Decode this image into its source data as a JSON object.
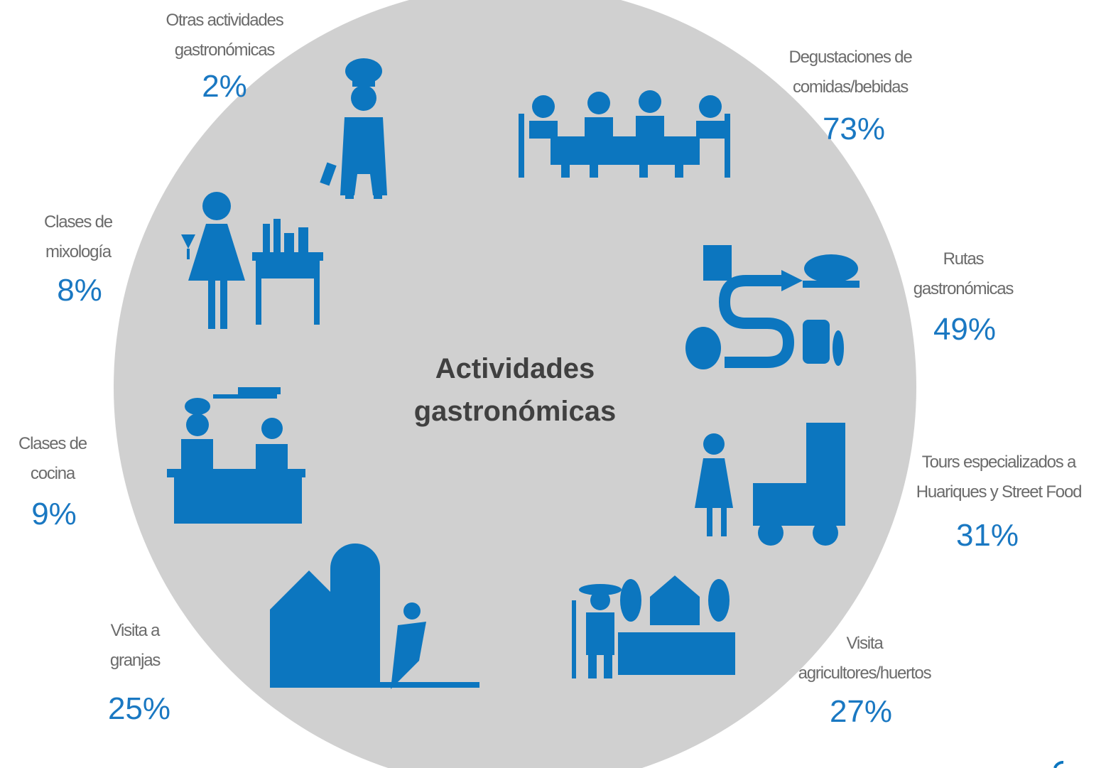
{
  "title": [
    "Actividades",
    "gastronómicas"
  ],
  "items": [
    {
      "label": [
        "Otras actividades",
        "gastronómicas"
      ],
      "value": "2%"
    },
    {
      "label": [
        "Degustaciones de",
        "comidas/bebidas"
      ],
      "value": "73%"
    },
    {
      "label": [
        "Rutas",
        "gastronómicas"
      ],
      "value": "49%"
    },
    {
      "label": [
        "Tours especializados a",
        "Huariques y Street Food"
      ],
      "value": "31%"
    },
    {
      "label": [
        "Visita",
        "agricultores/huertos"
      ],
      "value": "27%"
    },
    {
      "label": [
        "Visita a",
        "granjas"
      ],
      "value": "25%"
    },
    {
      "label": [
        "Clases de",
        "cocina"
      ],
      "value": "9%"
    },
    {
      "label": [
        "Clases de",
        "mixología"
      ],
      "value": "8%"
    }
  ]
}
